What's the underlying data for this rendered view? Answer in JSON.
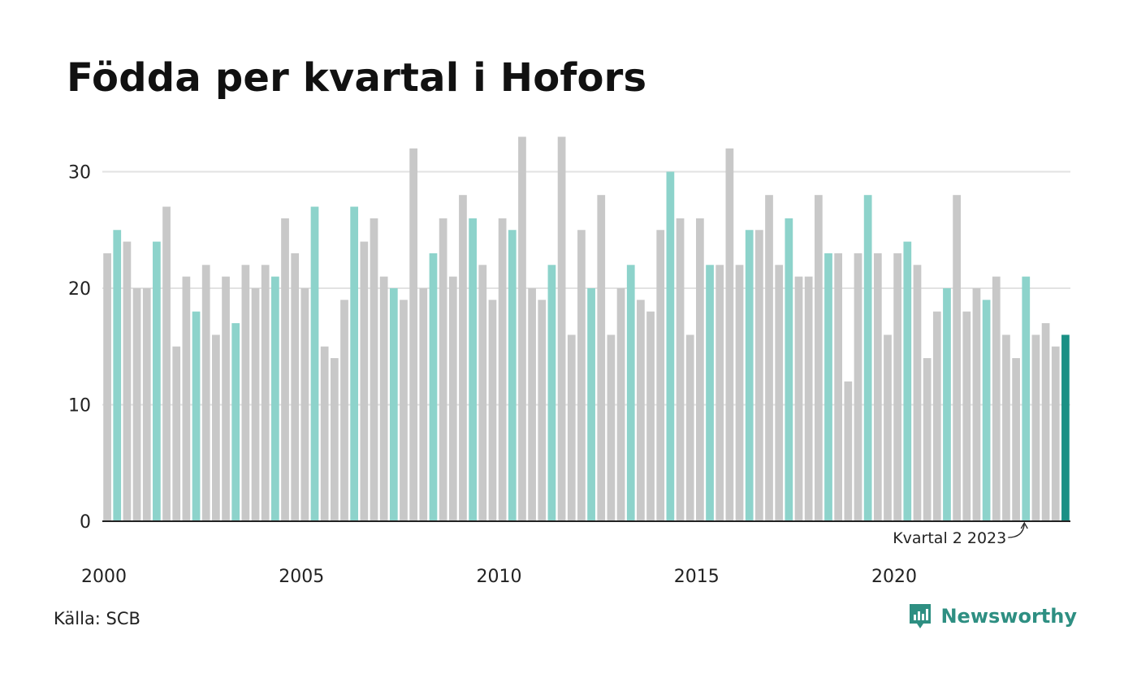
{
  "title": "Födda per kvartal i Hofors",
  "source": "Källa: SCB",
  "brand": "Newsworthy",
  "colors": {
    "highlight_quarter": "#8dd3cb",
    "other": "#c8c8c8",
    "latest": "#1a9085",
    "grid": "#e2e2e2",
    "axis": "#222222",
    "brand": "#2e8f82"
  },
  "chart_data": {
    "type": "bar",
    "title": "Födda per kvartal i Hofors",
    "xlabel": "",
    "ylabel": "",
    "start": {
      "year": 2000,
      "quarter": 1
    },
    "x_ticks": [
      "2000",
      "2005",
      "2010",
      "2015",
      "2020"
    ],
    "y_ticks": [
      0,
      10,
      20,
      30
    ],
    "ylim": [
      0,
      34
    ],
    "grid": true,
    "highlight": "Kvartal 2 each year; latest bar darker",
    "values": [
      23,
      25,
      24,
      20,
      20,
      24,
      27,
      15,
      21,
      18,
      22,
      16,
      21,
      17,
      22,
      20,
      22,
      21,
      26,
      23,
      20,
      27,
      15,
      14,
      19,
      27,
      24,
      26,
      21,
      20,
      19,
      32,
      20,
      23,
      26,
      21,
      28,
      26,
      22,
      19,
      26,
      25,
      33,
      20,
      19,
      22,
      33,
      16,
      25,
      20,
      28,
      16,
      20,
      22,
      19,
      18,
      25,
      30,
      26,
      16,
      26,
      22,
      22,
      32,
      22,
      25,
      25,
      28,
      22,
      26,
      21,
      21,
      28,
      23,
      23,
      12,
      23,
      28,
      23,
      16,
      23,
      24,
      22,
      14,
      18,
      20,
      28,
      18,
      20,
      19,
      21,
      16,
      14,
      21,
      16,
      17,
      15,
      16
    ],
    "annotation": {
      "text": "Kvartal 2 2023",
      "year": 2023,
      "quarter": 2
    }
  }
}
